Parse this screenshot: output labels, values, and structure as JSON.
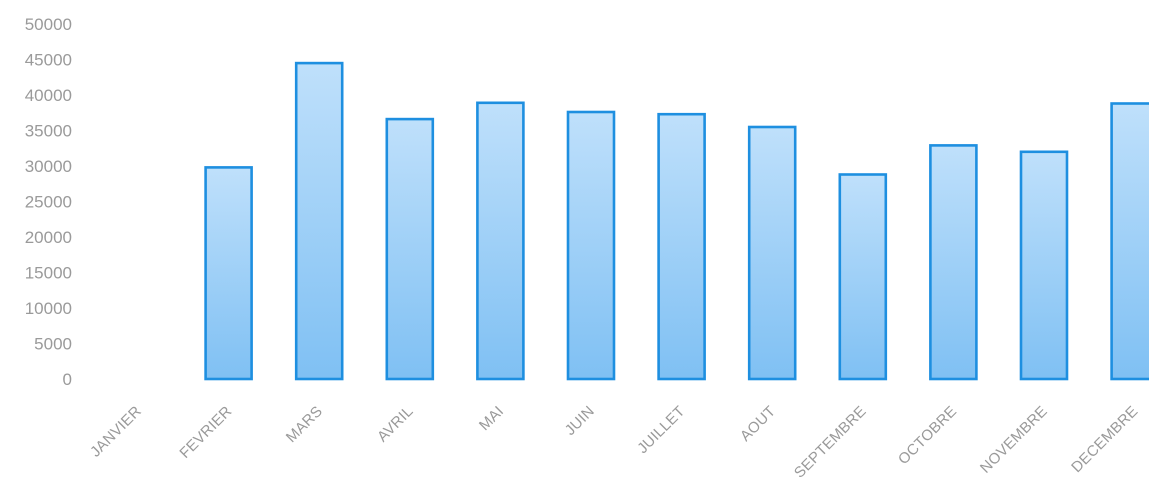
{
  "chart_data": {
    "type": "bar",
    "title": "",
    "xlabel": "",
    "ylabel": "",
    "categories": [
      "JANVIER",
      "FEVRIER",
      "MARS",
      "AVRIL",
      "MAI",
      "JUIN",
      "JUILLET",
      "AOUT",
      "SEPTEMBRE",
      "OCTOBRE",
      "NOVEMBRE",
      "DECEMBRE"
    ],
    "values": [
      0,
      29800,
      44500,
      36600,
      38900,
      37600,
      37300,
      35500,
      28800,
      32900,
      32000,
      38800
    ],
    "ylim": [
      0,
      50000
    ],
    "yticks": [
      "0",
      "5000",
      "10000",
      "15000",
      "20000",
      "25000",
      "30000",
      "35000",
      "40000",
      "45000",
      "50000"
    ],
    "grid": false,
    "legend": "none",
    "colors": {
      "bar_top": "#bfe0fb",
      "bar_bottom": "#7fc0f3",
      "bar_outline": "#1e8fe0",
      "text": "#9a9a9a"
    }
  }
}
